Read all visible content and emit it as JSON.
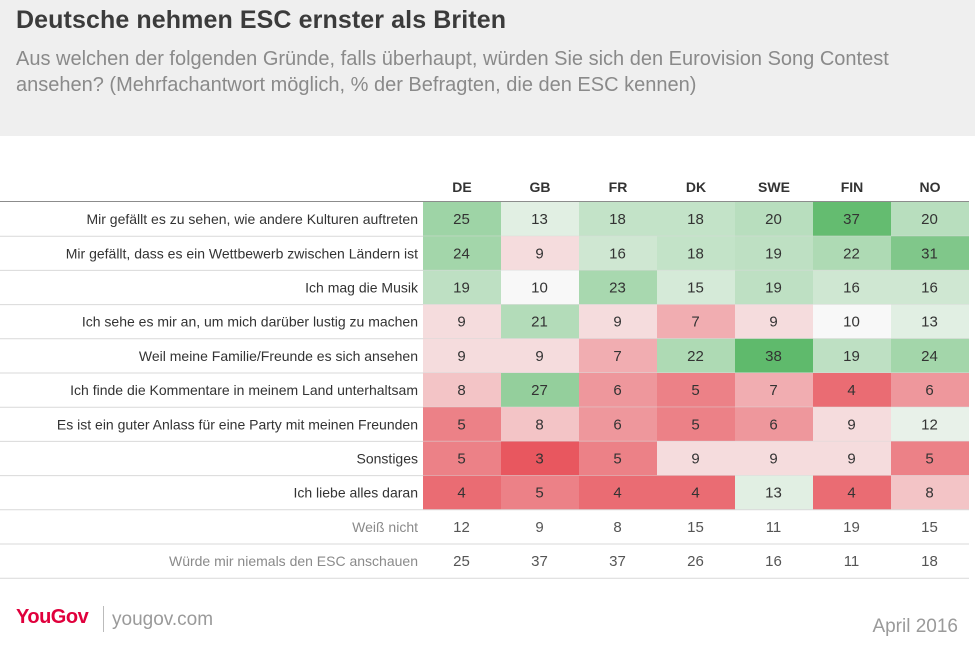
{
  "header": {
    "title": "Deutsche nehmen ESC ernster als Briten",
    "subtitle": "Aus welchen der folgenden Gründe, falls überhaupt, würden Sie sich den Eurovision Song Contest ansehen? (Mehrfachantwort möglich, % der Befragten, die den ESC kennen)"
  },
  "chart_data": {
    "type": "heatmap",
    "columns": [
      "DE",
      "GB",
      "FR",
      "DK",
      "SWE",
      "FIN",
      "NO"
    ],
    "rows": [
      {
        "label": "Mir gefällt es zu sehen, wie andere Kulturen auftreten",
        "values": [
          25,
          13,
          18,
          18,
          20,
          37,
          20
        ]
      },
      {
        "label": "Mir gefällt, dass es ein Wettbewerb zwischen Ländern ist",
        "values": [
          24,
          9,
          16,
          18,
          19,
          22,
          31
        ]
      },
      {
        "label": "Ich mag die Musik",
        "values": [
          19,
          10,
          23,
          15,
          19,
          16,
          16
        ]
      },
      {
        "label": "Ich sehe es mir an, um mich darüber lustig zu machen",
        "values": [
          9,
          21,
          9,
          7,
          9,
          10,
          13
        ]
      },
      {
        "label": "Weil meine Familie/Freunde es sich ansehen",
        "values": [
          9,
          9,
          7,
          22,
          38,
          19,
          24
        ]
      },
      {
        "label": "Ich finde die Kommentare in meinem Land unterhaltsam",
        "values": [
          8,
          27,
          6,
          5,
          7,
          4,
          6
        ]
      },
      {
        "label": "Es ist ein guter Anlass für eine Party mit meinen Freunden",
        "values": [
          5,
          8,
          6,
          5,
          6,
          9,
          12
        ]
      },
      {
        "label": "Sonstiges",
        "values": [
          5,
          3,
          5,
          9,
          9,
          9,
          5
        ]
      },
      {
        "label": "Ich liebe alles daran",
        "values": [
          4,
          5,
          4,
          4,
          13,
          4,
          8
        ]
      }
    ],
    "extra_rows": [
      {
        "label": "Weiß nicht",
        "values": [
          12,
          9,
          8,
          15,
          11,
          19,
          15
        ]
      },
      {
        "label": "Würde mir niemals den ESC anschauen",
        "values": [
          25,
          37,
          37,
          26,
          16,
          11,
          18
        ]
      }
    ],
    "colors": {
      "low": "#e8575f",
      "mid": "#f8f8f8",
      "high": "#5fba6c",
      "grid": "#d9d9d9",
      "separator": "#8c8c8c"
    }
  },
  "footer": {
    "logo": "YouGov",
    "url": "yougov.com",
    "date": "April 2016"
  }
}
